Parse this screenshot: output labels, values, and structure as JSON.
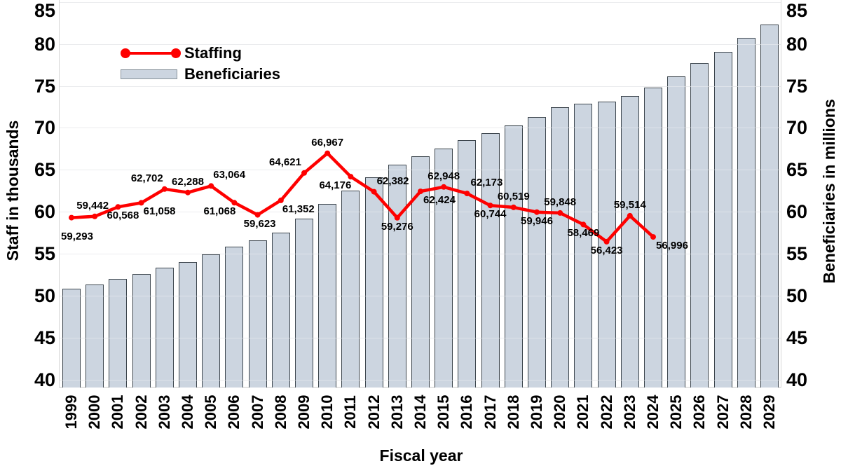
{
  "chart_data": {
    "type": "combo-bar-line",
    "x_title": "Fiscal year",
    "y_left_title": "Staff in thousands",
    "y_right_title": "Beneficiaries in millions",
    "y_ticks": [
      40,
      45,
      50,
      55,
      60,
      65,
      70,
      75,
      80,
      85
    ],
    "y_left_range": [
      40,
      85
    ],
    "y_right_range": [
      40,
      85
    ],
    "grid": "horizontal",
    "legend_position": "top-left-inside",
    "categories": [
      1999,
      2000,
      2001,
      2002,
      2003,
      2004,
      2005,
      2006,
      2007,
      2008,
      2009,
      2010,
      2011,
      2012,
      2013,
      2014,
      2015,
      2016,
      2017,
      2018,
      2019,
      2020,
      2021,
      2022,
      2023,
      2024,
      2025,
      2026,
      2027,
      2028,
      2029
    ],
    "series": [
      {
        "name": "Staffing",
        "type": "line",
        "axis": "left",
        "unit": "staff (thousands axis, raw counts labeled)",
        "values": [
          59293,
          59442,
          60568,
          61058,
          62702,
          62288,
          63064,
          61068,
          59623,
          61352,
          64621,
          66967,
          64176,
          62382,
          59276,
          62424,
          62948,
          62173,
          60744,
          60519,
          59946,
          59848,
          58469,
          56423,
          59514,
          56996
        ],
        "label_pos": [
          "below",
          "above",
          "below",
          "below",
          "above",
          "above",
          "above",
          "below",
          "below",
          "below",
          "above",
          "above",
          "below",
          "above",
          "below",
          "below",
          "above",
          "above",
          "below",
          "above",
          "below",
          "above",
          "below",
          "below",
          "above",
          "below"
        ],
        "label_dx": [
          8,
          -3,
          7,
          26,
          -25,
          0,
          26,
          -21,
          3,
          25,
          -27,
          0,
          -22,
          27,
          0,
          27,
          0,
          28,
          0,
          0,
          0,
          0,
          0,
          0,
          0,
          27
        ],
        "label_dy": [
          14,
          0,
          0,
          0,
          0,
          0,
          0,
          0,
          0,
          0,
          0,
          0,
          0,
          0,
          0,
          0,
          0,
          0,
          0,
          0,
          0,
          0,
          0,
          0,
          0,
          0
        ]
      },
      {
        "name": "Beneficiaries",
        "type": "bar",
        "axis": "right",
        "unit": "millions",
        "values": [
          50.8,
          51.3,
          52.0,
          52.6,
          53.3,
          54.0,
          54.9,
          55.8,
          56.6,
          57.5,
          59.2,
          60.9,
          62.5,
          64.1,
          65.6,
          66.6,
          67.5,
          68.5,
          69.4,
          70.3,
          71.3,
          72.5,
          72.9,
          73.1,
          73.8,
          74.8,
          76.1,
          77.7,
          79.1,
          80.7,
          82.3
        ]
      }
    ],
    "legend": [
      {
        "label": "Staffing",
        "marker": "line-with-dots"
      },
      {
        "label": "Beneficiaries",
        "marker": "bar-swatch"
      }
    ],
    "colors": {
      "line": "#fe0000",
      "bar_fill": "#ccd5e0",
      "bar_border": "#3d464e",
      "grid": "#e8e8e8",
      "text": "#000000",
      "plot_border": "#d6d6d6",
      "background": "#ffffff"
    }
  }
}
